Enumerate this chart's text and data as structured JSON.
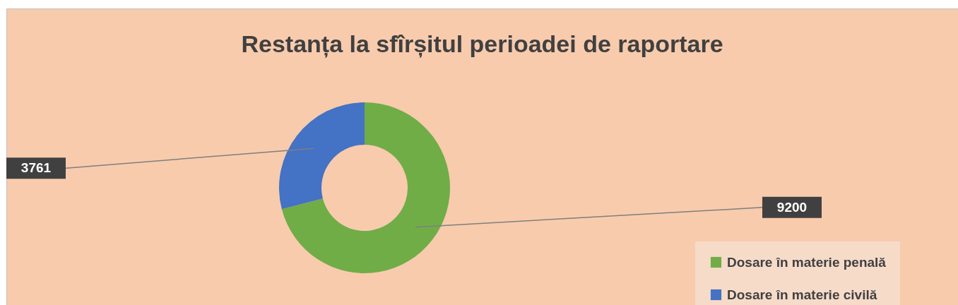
{
  "chart_data": {
    "type": "donut",
    "title": "Restanța la sfîrșitul perioadei de raportare",
    "categories": [
      "Dosare în materie penală",
      "Dosare în materie civilă"
    ],
    "values": [
      9200,
      3761
    ],
    "colors": [
      "#70ad47",
      "#4472c4"
    ],
    "data_labels": true,
    "legend": "bottom right"
  }
}
